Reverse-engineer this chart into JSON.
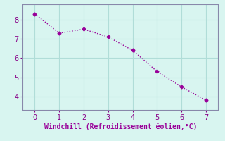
{
  "x": [
    0,
    1,
    2,
    3,
    4,
    5,
    6,
    7
  ],
  "y": [
    8.3,
    7.3,
    7.5,
    7.1,
    6.4,
    5.3,
    4.5,
    3.8
  ],
  "line_color": "#990099",
  "marker": "D",
  "marker_size": 2.5,
  "linewidth": 1.0,
  "linestyle": "dotted",
  "xlabel": "Windchill (Refroidissement éolien,°C)",
  "xlabel_fontsize": 7,
  "xlabel_color": "#990099",
  "background_color": "#d8f5f0",
  "grid_color": "#b0ddd8",
  "spine_color": "#8888aa",
  "tick_color": "#880088",
  "xlim": [
    -0.5,
    7.5
  ],
  "ylim": [
    3.3,
    8.8
  ],
  "xticks": [
    0,
    1,
    2,
    3,
    4,
    5,
    6,
    7
  ],
  "yticks": [
    4,
    5,
    6,
    7,
    8
  ],
  "tick_fontsize": 7,
  "figsize": [
    3.2,
    2.0
  ],
  "dpi": 100
}
